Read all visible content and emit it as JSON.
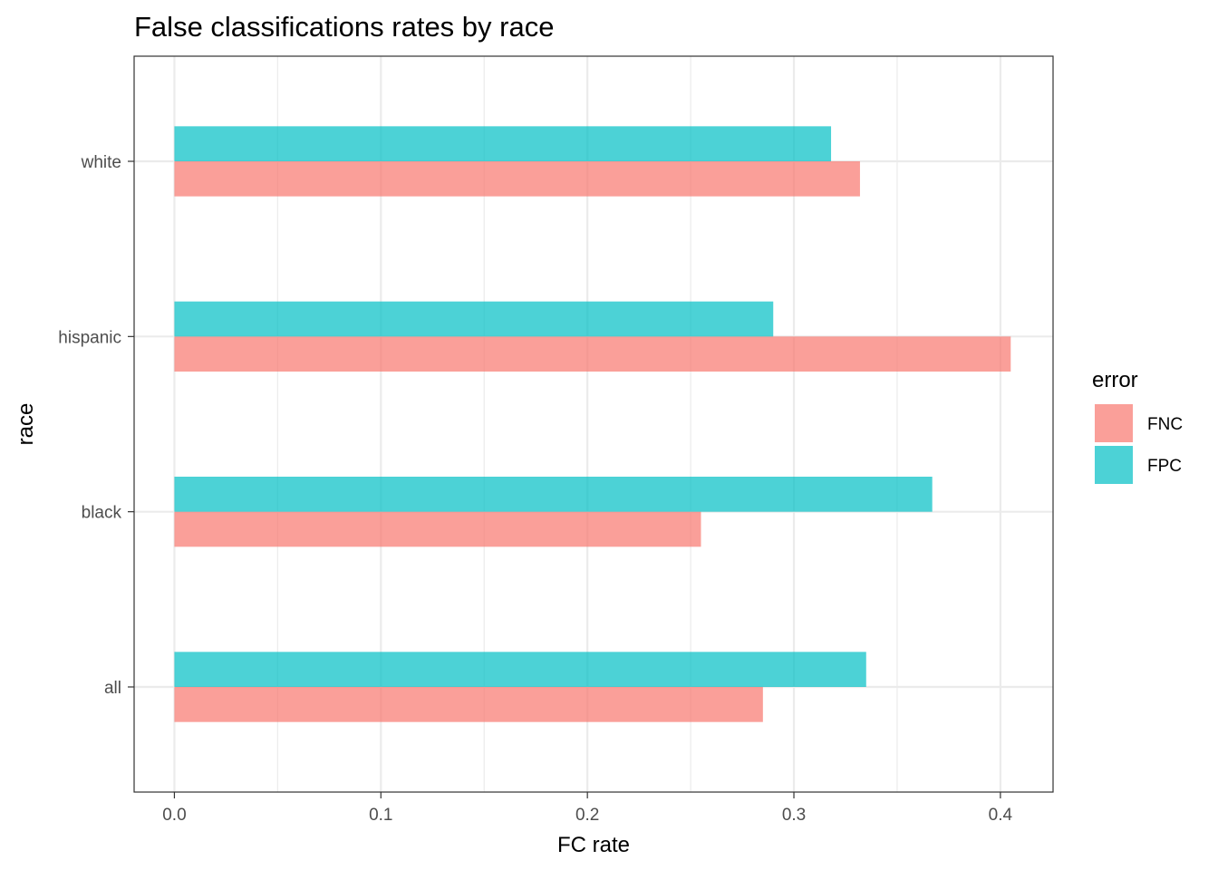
{
  "chart_data": {
    "type": "bar",
    "orientation": "horizontal",
    "title": "False classifications rates by race",
    "xlabel": "FC rate",
    "ylabel": "race",
    "categories": [
      "all",
      "black",
      "hispanic",
      "white"
    ],
    "series": [
      {
        "name": "FNC",
        "values": [
          0.285,
          0.255,
          0.405,
          0.332
        ],
        "color": "#F8766D"
      },
      {
        "name": "FPC",
        "values": [
          0.335,
          0.367,
          0.29,
          0.318
        ],
        "color": "#00BFC4"
      }
    ],
    "xlim": [
      -0.0195,
      0.4255
    ],
    "x_ticks": [
      "0.0",
      "0.1",
      "0.2",
      "0.3",
      "0.4"
    ],
    "x_tick_values": [
      0,
      0.1,
      0.2,
      0.3,
      0.4
    ],
    "grid": true,
    "legend": {
      "title": "error",
      "position": "right",
      "entries": [
        "FNC",
        "FPC"
      ]
    }
  }
}
